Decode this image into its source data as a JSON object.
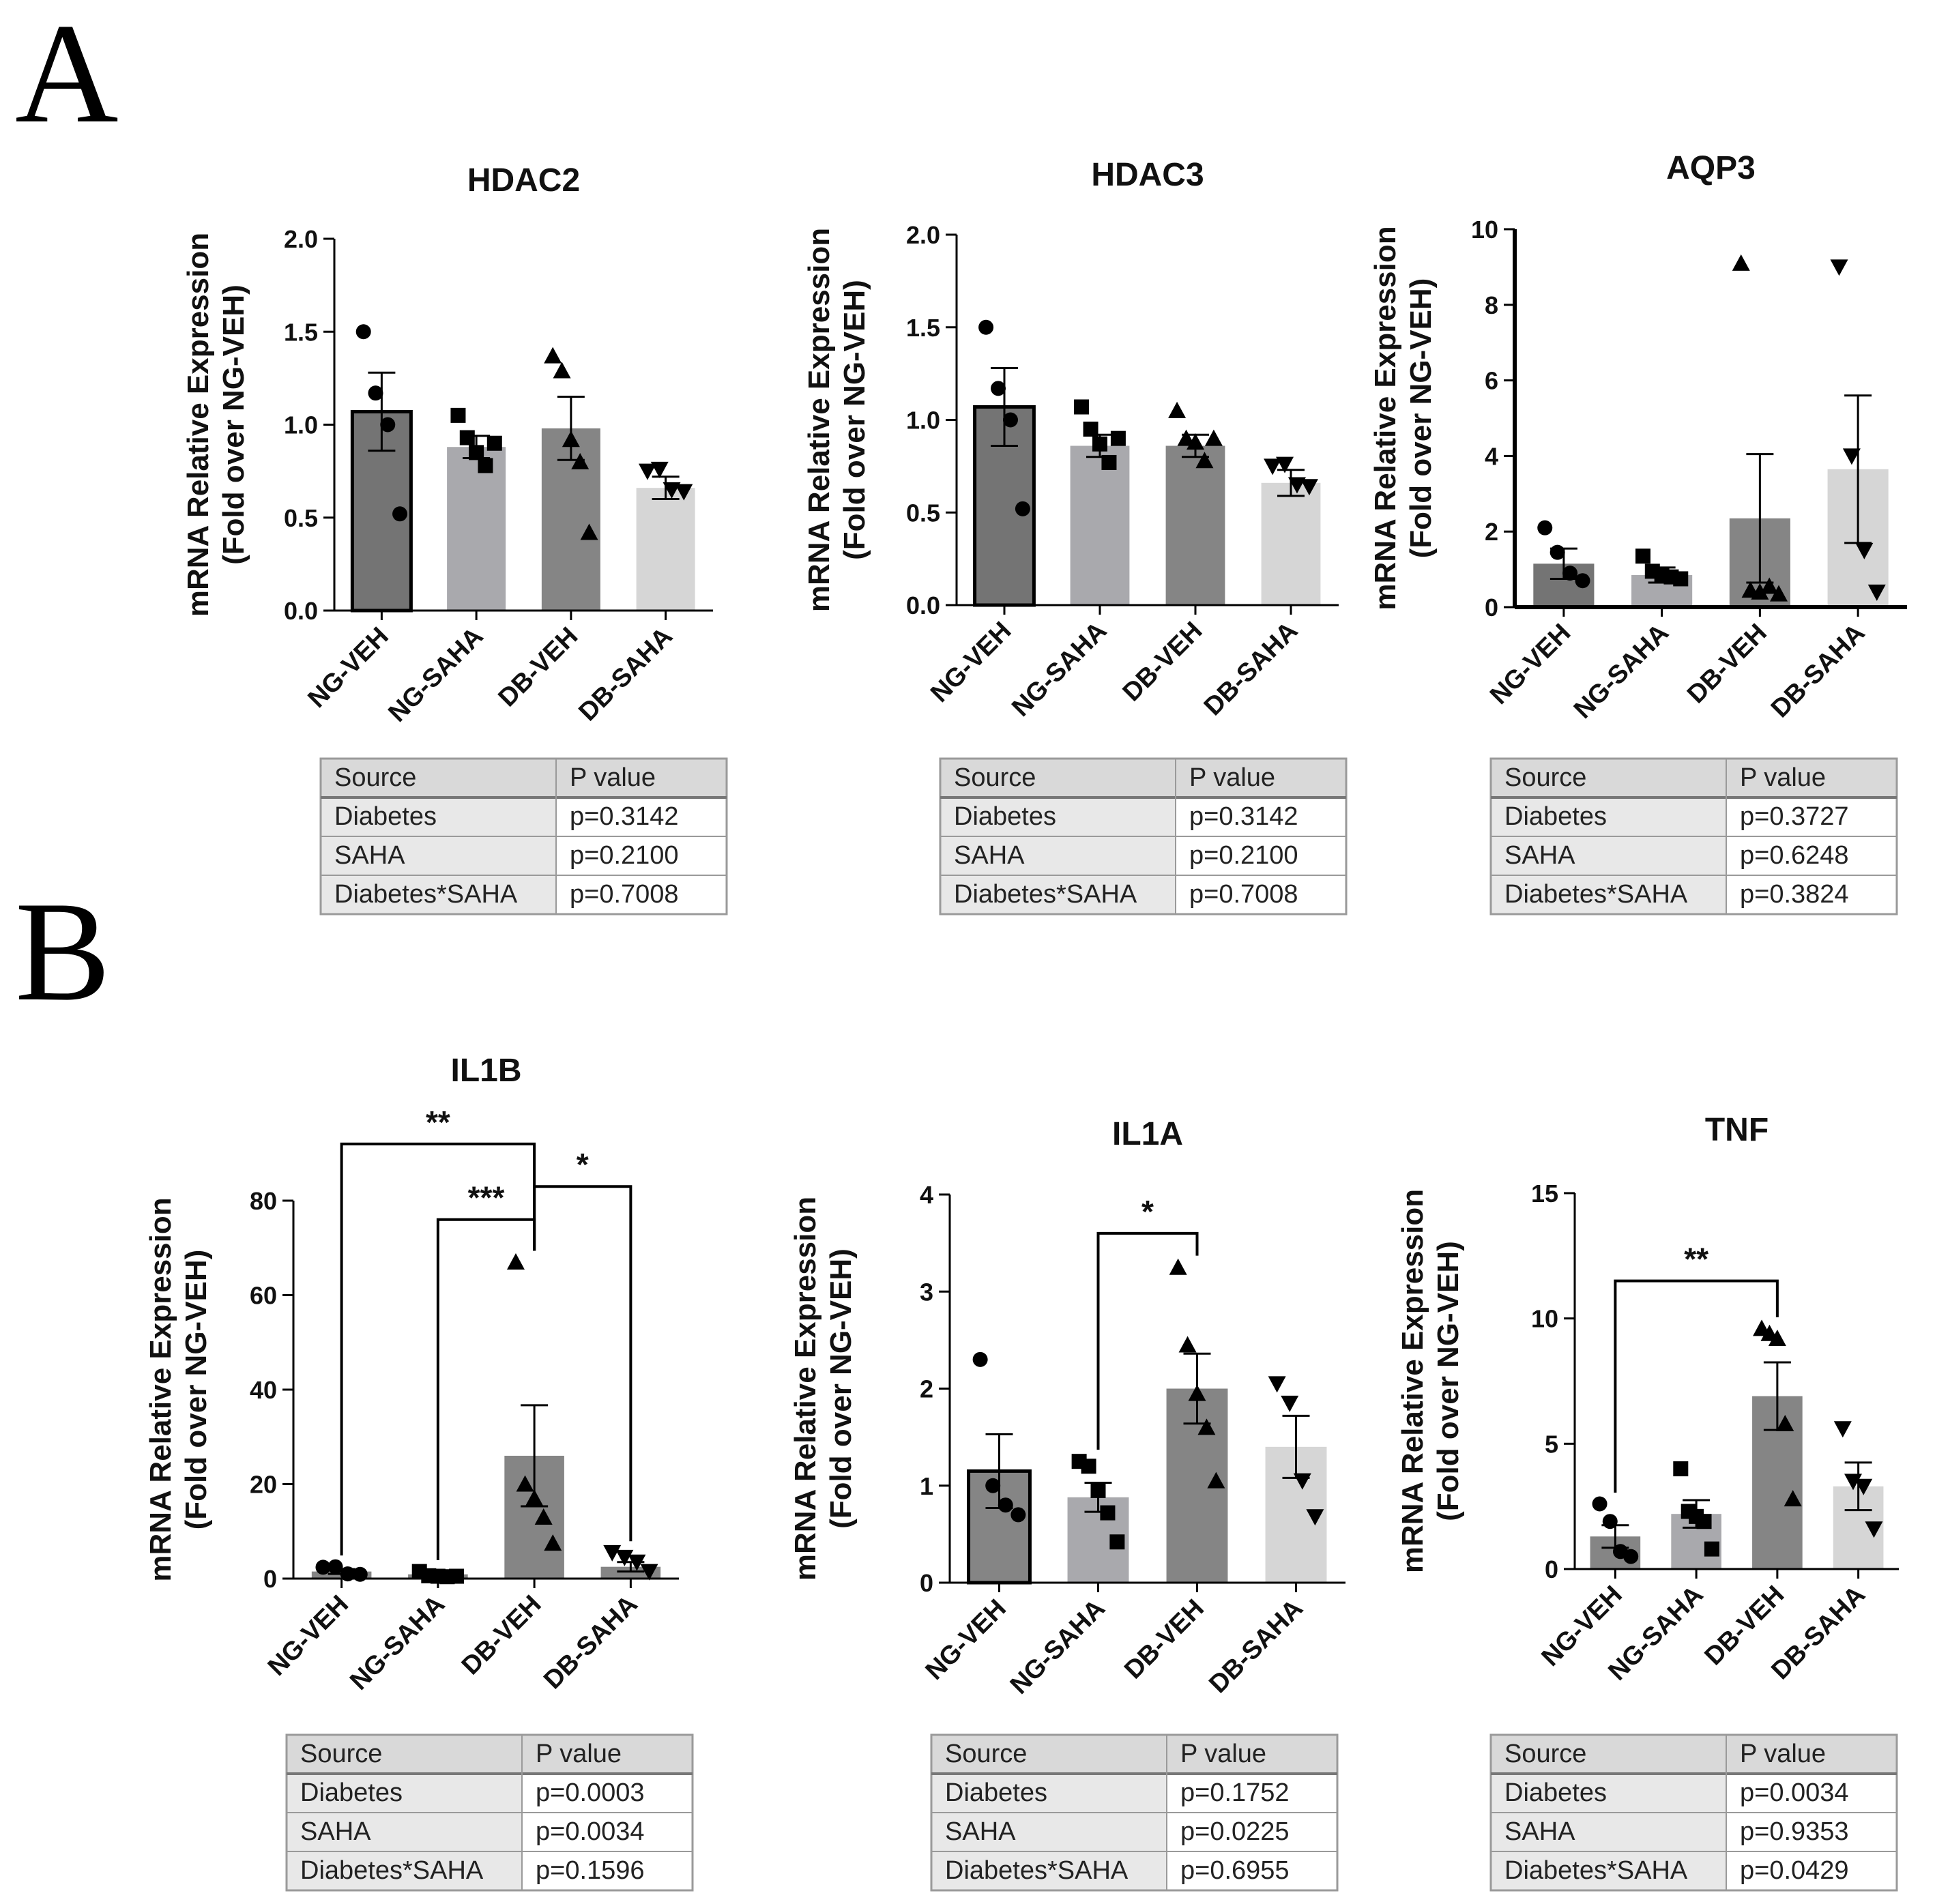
{
  "panel_labels": [
    "A",
    "B"
  ],
  "chart_data": [
    {
      "type": "bar",
      "panel": "A",
      "title": "HDAC2",
      "ylabel": [
        "mRNA Relative Expression",
        "(Fold over NG-VEH)"
      ],
      "categories": [
        "NG-VEH",
        "NG-SAHA",
        "DB-VEH",
        "DB-SAHA"
      ],
      "yticks": [
        "0.0",
        "0.5",
        "1.0",
        "1.5",
        "2.0"
      ],
      "ylim": [
        0,
        2.0
      ],
      "values": [
        1.07,
        0.88,
        0.98,
        0.66
      ],
      "sem": [
        0.21,
        0.06,
        0.17,
        0.06
      ],
      "points": [
        [
          1.5,
          1.17,
          1.0,
          0.52
        ],
        [
          1.05,
          0.93,
          0.85,
          0.78,
          0.9
        ],
        [
          1.37,
          1.29,
          0.92,
          0.8,
          0.42
        ],
        [
          0.75,
          0.76,
          0.65,
          0.64
        ]
      ],
      "markers": [
        "circle",
        "square",
        "triangle-up",
        "triangle-down"
      ],
      "colors": [
        "#747474",
        "#a9a9ad",
        "#858585",
        "#d6d6d6"
      ],
      "significance": [],
      "stats_table": {
        "headers": [
          "Source",
          "P value"
        ],
        "rows": [
          [
            "Diabetes",
            "p=0.3142"
          ],
          [
            "SAHA",
            "p=0.2100"
          ],
          [
            "Diabetes*SAHA",
            "p=0.7008"
          ]
        ]
      }
    },
    {
      "type": "bar",
      "panel": "A",
      "title": "HDAC3",
      "ylabel": [
        "mRNA Relative Expression",
        "(Fold over NG-VEH)"
      ],
      "categories": [
        "NG-VEH",
        "NG-SAHA",
        "DB-VEH",
        "DB-SAHA"
      ],
      "yticks": [
        "0.0",
        "0.5",
        "1.0",
        "1.5",
        "2.0"
      ],
      "ylim": [
        0,
        2.0
      ],
      "values": [
        1.07,
        0.86,
        0.86,
        0.66
      ],
      "sem": [
        0.21,
        0.06,
        0.06,
        0.07
      ],
      "points": [
        [
          1.5,
          1.17,
          1.0,
          0.52
        ],
        [
          1.07,
          0.95,
          0.87,
          0.77,
          0.9
        ],
        [
          1.05,
          0.9,
          0.88,
          0.78,
          0.9
        ],
        [
          0.75,
          0.76,
          0.65,
          0.64
        ]
      ],
      "markers": [
        "circle",
        "square",
        "triangle-up",
        "triangle-down"
      ],
      "colors": [
        "#747474",
        "#a9a9ad",
        "#858585",
        "#d6d6d6"
      ],
      "significance": [],
      "stats_table": {
        "headers": [
          "Source",
          "P value"
        ],
        "rows": [
          [
            "Diabetes",
            "p=0.3142"
          ],
          [
            "SAHA",
            "p=0.2100"
          ],
          [
            "Diabetes*SAHA",
            "p=0.7008"
          ]
        ]
      }
    },
    {
      "type": "bar",
      "panel": "A",
      "title": "AQP3",
      "ylabel": [
        "mRNA Relative Expression",
        "(Fold over NG-VEH)"
      ],
      "categories": [
        "NG-VEH",
        "NG-SAHA",
        "DB-VEH",
        "DB-SAHA"
      ],
      "yticks": [
        "0",
        "2",
        "4",
        "6",
        "8",
        "10"
      ],
      "ylim": [
        0,
        10
      ],
      "values": [
        1.15,
        0.85,
        2.35,
        3.65
      ],
      "sem": [
        0.4,
        0.2,
        1.7,
        1.95
      ],
      "points": [
        [
          2.1,
          1.45,
          0.9,
          0.7
        ],
        [
          1.35,
          0.95,
          0.85,
          0.8,
          0.75
        ],
        [
          9.1,
          0.45,
          0.4,
          0.55,
          0.35
        ],
        [
          9.0,
          4.0,
          1.5,
          0.4
        ]
      ],
      "markers": [
        "circle",
        "square",
        "triangle-up",
        "triangle-down"
      ],
      "colors": [
        "#747474",
        "#a9a9ad",
        "#858585",
        "#d6d6d6"
      ],
      "significance": [],
      "stats_table": {
        "headers": [
          "Source",
          "P value"
        ],
        "rows": [
          [
            "Diabetes",
            "p=0.3727"
          ],
          [
            "SAHA",
            "p=0.6248"
          ],
          [
            "Diabetes*SAHA",
            "p=0.3824"
          ]
        ]
      }
    },
    {
      "type": "bar",
      "panel": "B",
      "title": "IL1B",
      "ylabel": [
        "mRNA Relative Expression",
        "(Fold over NG-VEH)"
      ],
      "categories": [
        "NG-VEH",
        "NG-SAHA",
        "DB-VEH",
        "DB-SAHA"
      ],
      "yticks": [
        "0",
        "20",
        "40",
        "60",
        "80"
      ],
      "ylim": [
        0,
        80
      ],
      "values": [
        1.5,
        0.9,
        26.0,
        2.5
      ],
      "sem": [
        0.5,
        0.3,
        10.7,
        1.0
      ],
      "points": [
        [
          2.4,
          2.5,
          1.0,
          0.9
        ],
        [
          1.5,
          0.6,
          0.5,
          0.4,
          0.5
        ],
        [
          67.0,
          20.0,
          17.0,
          13.0,
          7.5
        ],
        [
          5.5,
          4.5,
          3.5,
          1.5
        ]
      ],
      "markers": [
        "circle",
        "square",
        "triangle-up",
        "triangle-down"
      ],
      "colors": [
        "#858585",
        "#858585",
        "#858585",
        "#858585"
      ],
      "significance": [
        {
          "from": 0,
          "to": 2,
          "label": "**",
          "y": 92
        },
        {
          "from": 1,
          "to": 2,
          "label": "***",
          "y": 76
        },
        {
          "from": 2,
          "to": 3,
          "label": "*",
          "y": 83
        }
      ],
      "stats_table": {
        "headers": [
          "Source",
          "P value"
        ],
        "rows": [
          [
            "Diabetes",
            "p=0.0003"
          ],
          [
            "SAHA",
            "p=0.0034"
          ],
          [
            "Diabetes*SAHA",
            "p=0.1596"
          ]
        ]
      }
    },
    {
      "type": "bar",
      "panel": "B",
      "title": "IL1A",
      "ylabel": [
        "mRNA Relative Expression",
        "(Fold over NG-VEH)"
      ],
      "categories": [
        "NG-VEH",
        "NG-SAHA",
        "DB-VEH",
        "DB-SAHA"
      ],
      "yticks": [
        "0",
        "1",
        "2",
        "3",
        "4"
      ],
      "ylim": [
        0,
        4
      ],
      "values": [
        1.15,
        0.88,
        2.0,
        1.4
      ],
      "sem": [
        0.38,
        0.15,
        0.36,
        0.32
      ],
      "points": [
        [
          2.3,
          1.0,
          0.8,
          0.7
        ],
        [
          1.25,
          1.2,
          0.95,
          0.72,
          0.42
        ],
        [
          3.25,
          2.45,
          1.95,
          1.6,
          1.05
        ],
        [
          2.05,
          1.85,
          1.05,
          0.68
        ]
      ],
      "markers": [
        "circle",
        "square",
        "triangle-up",
        "triangle-down"
      ],
      "colors": [
        "#858585",
        "#a9a9ad",
        "#858585",
        "#d6d6d6"
      ],
      "significance": [
        {
          "from": 1,
          "to": 2,
          "label": "*",
          "y": 3.6
        }
      ],
      "stats_table": {
        "headers": [
          "Source",
          "P value"
        ],
        "rows": [
          [
            "Diabetes",
            "p=0.1752"
          ],
          [
            "SAHA",
            "p=0.0225"
          ],
          [
            "Diabetes*SAHA",
            "p=0.6955"
          ]
        ]
      }
    },
    {
      "type": "bar",
      "panel": "B",
      "title": "TNF",
      "ylabel": [
        "mRNA Relative Expression",
        "(Fold over NG-VEH)"
      ],
      "categories": [
        "NG-VEH",
        "NG-SAHA",
        "DB-VEH",
        "DB-SAHA"
      ],
      "yticks": [
        "0",
        "5",
        "10",
        "15"
      ],
      "ylim": [
        0,
        15
      ],
      "values": [
        1.3,
        2.2,
        6.9,
        3.3
      ],
      "sem": [
        0.45,
        0.55,
        1.35,
        0.95
      ],
      "points": [
        [
          2.6,
          1.9,
          0.7,
          0.5
        ],
        [
          4.0,
          2.3,
          2.1,
          1.9,
          0.8
        ],
        [
          9.6,
          9.4,
          9.2,
          5.8,
          2.8
        ],
        [
          5.6,
          3.5,
          3.3,
          1.6
        ]
      ],
      "markers": [
        "circle",
        "square",
        "triangle-up",
        "triangle-down"
      ],
      "colors": [
        "#858585",
        "#a9a9ad",
        "#858585",
        "#d6d6d6"
      ],
      "significance": [
        {
          "from": 0,
          "to": 2,
          "label": "**",
          "y": 11.5
        }
      ],
      "stats_table": {
        "headers": [
          "Source",
          "P value"
        ],
        "rows": [
          [
            "Diabetes",
            "p=0.0034"
          ],
          [
            "SAHA",
            "p=0.9353"
          ],
          [
            "Diabetes*SAHA",
            "p=0.0429"
          ]
        ]
      }
    }
  ]
}
